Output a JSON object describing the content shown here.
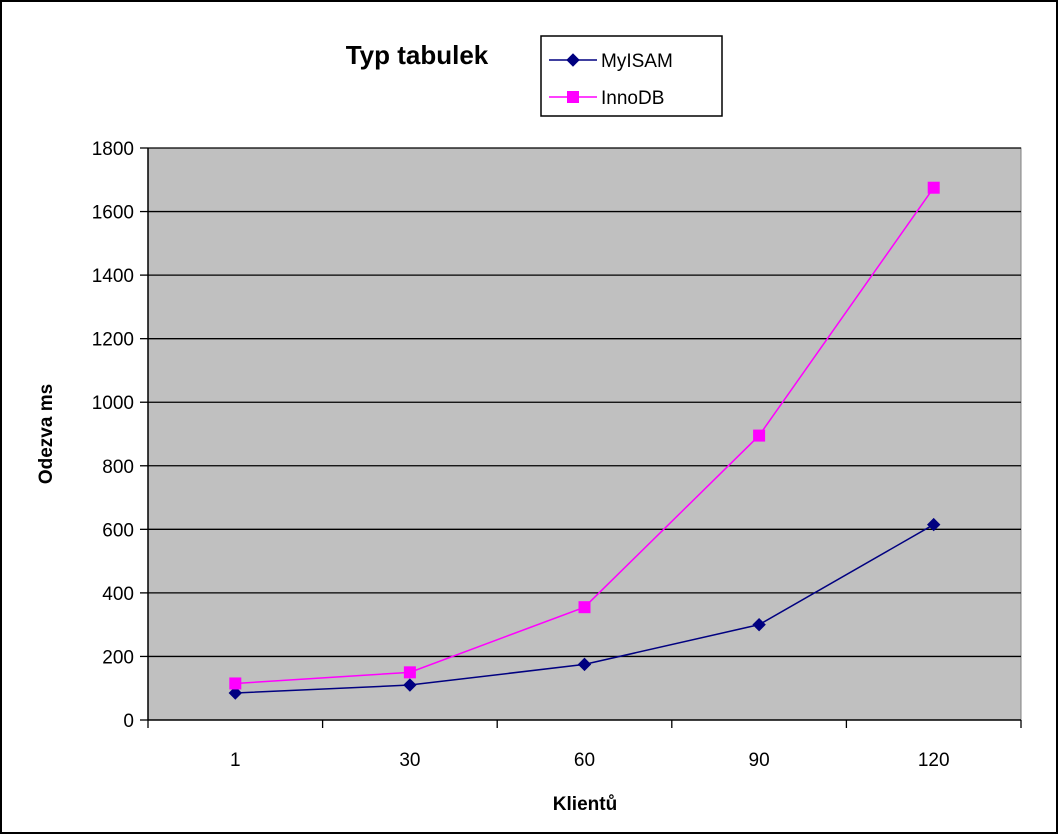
{
  "chart_data": {
    "type": "line",
    "title": "Typ tabulek",
    "xlabel": "Klientů",
    "ylabel": "Odezva ms",
    "categories": [
      "1",
      "30",
      "60",
      "90",
      "120"
    ],
    "ylim": [
      0,
      1800
    ],
    "yticks": [
      "0",
      "200",
      "400",
      "600",
      "800",
      "1000",
      "1200",
      "1400",
      "1600",
      "1800"
    ],
    "grid": true,
    "legend_position": "top-right",
    "plot_background": "#C0C0C0",
    "series": [
      {
        "name": "MyISAM",
        "color": "#000080",
        "marker": "diamond",
        "values": [
          85,
          110,
          175,
          300,
          615
        ]
      },
      {
        "name": "InnoDB",
        "color": "#FF00FF",
        "marker": "square",
        "values": [
          115,
          150,
          355,
          895,
          1675
        ]
      }
    ]
  }
}
